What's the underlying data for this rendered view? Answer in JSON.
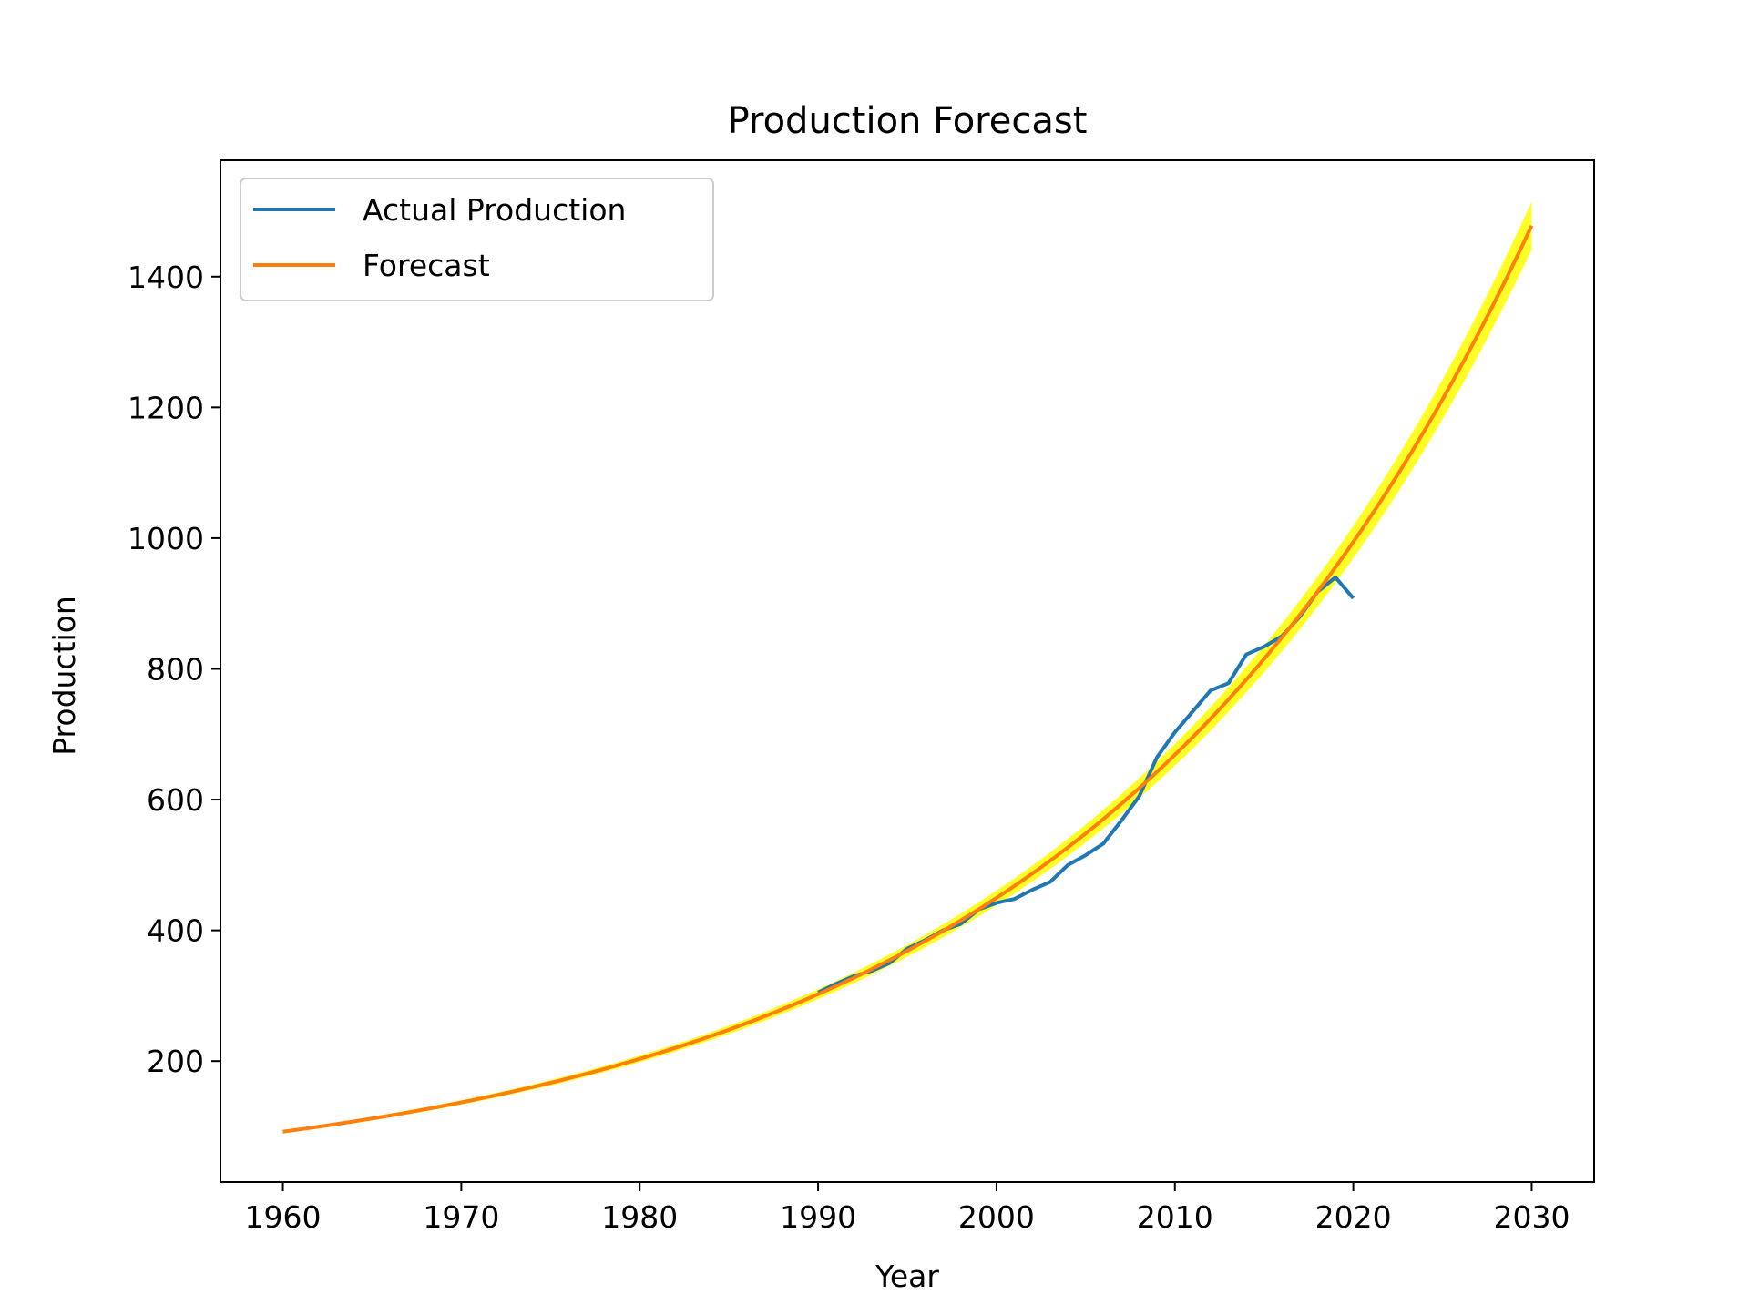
{
  "chart_data": {
    "type": "line",
    "title": "Production Forecast",
    "xlabel": "Year",
    "ylabel": "Production",
    "xlim": [
      1956.5,
      2033.5
    ],
    "ylim": [
      15,
      1578
    ],
    "x_ticks": [
      1960,
      1970,
      1980,
      1990,
      2000,
      2010,
      2020,
      2030
    ],
    "y_ticks": [
      200,
      400,
      600,
      800,
      1000,
      1200,
      1400
    ],
    "grid": false,
    "legend_position": "upper-left",
    "series": [
      {
        "name": "Actual Production",
        "color": "#1f77b4",
        "x": [
          1990,
          1991,
          1992,
          1993,
          1994,
          1995,
          1996,
          1997,
          1998,
          1999,
          2000,
          2001,
          2002,
          2003,
          2004,
          2005,
          2006,
          2007,
          2008,
          2009,
          2010,
          2011,
          2012,
          2013,
          2014,
          2015,
          2016,
          2017,
          2018,
          2019,
          2020
        ],
        "y": [
          305,
          318,
          330,
          338,
          350,
          372,
          385,
          400,
          410,
          432,
          442,
          448,
          462,
          474,
          500,
          515,
          533,
          568,
          605,
          665,
          703,
          735,
          767,
          778,
          822,
          834,
          850,
          880,
          918,
          940,
          908
        ]
      },
      {
        "name": "Forecast",
        "color": "#ff7f0e",
        "model": "exponential",
        "x": [
          1960,
          1965,
          1970,
          1975,
          1980,
          1985,
          1990,
          1995,
          2000,
          2005,
          2010,
          2015,
          2020,
          2025,
          2030
        ],
        "y": [
          92,
          112,
          136,
          165,
          200,
          243,
          296,
          360,
          437,
          531,
          645,
          784,
          953,
          1159,
          1478
        ]
      }
    ],
    "confidence_band": {
      "color": "#ffff00",
      "relative_width": 0.025
    }
  }
}
